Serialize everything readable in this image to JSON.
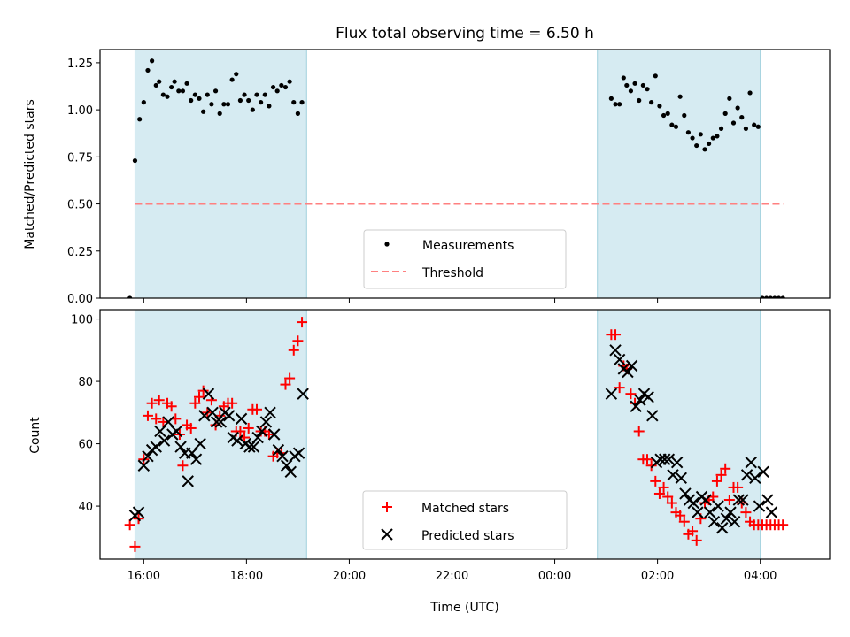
{
  "chart_data": [
    {
      "type": "scatter",
      "title": "Flux total observing time = 6.50 h",
      "xlabel": "",
      "ylabel": "Matched/Predicted stars",
      "xlim": [
        -0.85,
        13.35
      ],
      "ylim": [
        0,
        1.32
      ],
      "yticks": [
        0.0,
        0.25,
        0.5,
        0.75,
        1.0,
        1.25
      ],
      "ytick_labels": [
        "0.00",
        "0.25",
        "0.50",
        "0.75",
        "1.00",
        "1.25"
      ],
      "xticks": [
        0,
        2,
        4,
        6,
        8,
        10,
        12
      ],
      "shaded_intervals": [
        [
          -0.17,
          3.17
        ],
        [
          8.83,
          12.0
        ]
      ],
      "threshold": {
        "name": "Threshold",
        "value": 0.5,
        "x_range": [
          -0.17,
          12.45
        ],
        "color": "#ff8080"
      },
      "legend": {
        "position": "lower center",
        "entries": [
          "Measurements",
          "Threshold"
        ]
      },
      "series": [
        {
          "name": "Measurements",
          "color": "#000000",
          "marker": "dot",
          "x": [
            -0.27,
            -0.17,
            -0.08,
            0.0,
            0.08,
            0.16,
            0.24,
            0.3,
            0.38,
            0.46,
            0.54,
            0.6,
            0.68,
            0.76,
            0.84,
            0.92,
            1.0,
            1.08,
            1.16,
            1.24,
            1.32,
            1.4,
            1.48,
            1.56,
            1.64,
            1.72,
            1.8,
            1.88,
            1.96,
            2.04,
            2.12,
            2.2,
            2.28,
            2.36,
            2.44,
            2.52,
            2.6,
            2.68,
            2.76,
            2.84,
            2.92,
            3.0,
            3.08,
            9.1,
            9.18,
            9.26,
            9.34,
            9.4,
            9.48,
            9.56,
            9.64,
            9.72,
            9.8,
            9.88,
            9.96,
            10.04,
            10.12,
            10.2,
            10.28,
            10.36,
            10.44,
            10.52,
            10.6,
            10.68,
            10.76,
            10.84,
            10.92,
            11.0,
            11.08,
            11.16,
            11.24,
            11.32,
            11.4,
            11.48,
            11.56,
            11.64,
            11.72,
            11.8,
            11.88,
            11.96,
            12.04,
            12.12,
            12.2,
            12.28,
            12.36,
            12.44
          ],
          "y": [
            0.0,
            0.73,
            0.95,
            1.04,
            1.21,
            1.26,
            1.13,
            1.15,
            1.08,
            1.07,
            1.12,
            1.15,
            1.1,
            1.1,
            1.14,
            1.05,
            1.08,
            1.06,
            0.99,
            1.08,
            1.03,
            1.1,
            0.98,
            1.03,
            1.03,
            1.16,
            1.19,
            1.05,
            1.08,
            1.05,
            1.0,
            1.08,
            1.04,
            1.08,
            1.02,
            1.12,
            1.1,
            1.13,
            1.12,
            1.15,
            1.04,
            0.98,
            1.04,
            1.06,
            1.03,
            1.03,
            1.17,
            1.13,
            1.1,
            1.14,
            1.05,
            1.13,
            1.11,
            1.04,
            1.18,
            1.02,
            0.97,
            0.98,
            0.92,
            0.91,
            1.07,
            0.97,
            0.88,
            0.85,
            0.81,
            0.87,
            0.79,
            0.82,
            0.85,
            0.86,
            0.9,
            0.98,
            1.06,
            0.93,
            1.01,
            0.96,
            0.9,
            1.09,
            0.92,
            0.91,
            0.0,
            0.0,
            0.0,
            0.0,
            0.0,
            0.0
          ]
        }
      ]
    },
    {
      "type": "scatter",
      "title": "",
      "xlabel": "Time (UTC)",
      "ylabel": "Count",
      "xlim": [
        -0.85,
        13.35
      ],
      "ylim": [
        23,
        103
      ],
      "yticks": [
        40,
        60,
        80,
        100
      ],
      "ytick_labels": [
        "40",
        "60",
        "80",
        "100"
      ],
      "xticks": [
        0,
        2,
        4,
        6,
        8,
        10,
        12
      ],
      "xtick_labels": [
        "16:00",
        "18:00",
        "20:00",
        "22:00",
        "00:00",
        "02:00",
        "04:00"
      ],
      "shaded_intervals": [
        [
          -0.17,
          3.17
        ],
        [
          8.83,
          12.0
        ]
      ],
      "legend": {
        "position": "lower center",
        "entries": [
          "Matched stars",
          "Predicted stars"
        ]
      },
      "series": [
        {
          "name": "Matched stars",
          "color": "#ff0000",
          "marker": "plus",
          "x": [
            -0.27,
            -0.17,
            -0.1,
            0.0,
            0.08,
            0.16,
            0.24,
            0.3,
            0.38,
            0.46,
            0.54,
            0.62,
            0.7,
            0.76,
            0.84,
            0.92,
            1.0,
            1.08,
            1.16,
            1.24,
            1.32,
            1.4,
            1.48,
            1.56,
            1.64,
            1.72,
            1.8,
            1.88,
            1.96,
            2.04,
            2.12,
            2.2,
            2.28,
            2.36,
            2.44,
            2.52,
            2.6,
            2.68,
            2.76,
            2.84,
            2.92,
            3.0,
            3.08,
            9.1,
            9.18,
            9.26,
            9.34,
            9.4,
            9.48,
            9.56,
            9.64,
            9.72,
            9.8,
            9.88,
            9.96,
            10.04,
            10.12,
            10.2,
            10.28,
            10.36,
            10.44,
            10.52,
            10.6,
            10.68,
            10.76,
            10.84,
            10.92,
            11.0,
            11.08,
            11.16,
            11.24,
            11.32,
            11.4,
            11.48,
            11.56,
            11.64,
            11.72,
            11.8,
            11.88,
            11.96,
            12.04,
            12.12,
            12.2,
            12.28,
            12.36,
            12.44
          ],
          "y": [
            34,
            27,
            36,
            55,
            69,
            73,
            68,
            74,
            67,
            73,
            72,
            68,
            63,
            53,
            66,
            65,
            73,
            75,
            77,
            70,
            74,
            66,
            69,
            72,
            73,
            73,
            64,
            64,
            62,
            65,
            71,
            71,
            64,
            64,
            63,
            56,
            57,
            57,
            79,
            81,
            90,
            93,
            99,
            95,
            95,
            78,
            85,
            84,
            76,
            73,
            64,
            55,
            55,
            53,
            48,
            44,
            46,
            43,
            41,
            38,
            37,
            35,
            31,
            32,
            29,
            36,
            41,
            42,
            43,
            48,
            50,
            52,
            42,
            46,
            46,
            41,
            38,
            35,
            34,
            34,
            34,
            34,
            34,
            34,
            34,
            34
          ],
          "x_note": "x values in hours since 16:00 UTC"
        },
        {
          "name": "Predicted stars",
          "color": "#000000",
          "marker": "cross",
          "x": [
            -0.17,
            -0.1,
            0.0,
            0.08,
            0.16,
            0.24,
            0.32,
            0.4,
            0.48,
            0.56,
            0.64,
            0.72,
            0.8,
            0.86,
            0.94,
            1.02,
            1.1,
            1.18,
            1.26,
            1.34,
            1.42,
            1.5,
            1.58,
            1.66,
            1.74,
            1.82,
            1.9,
            1.98,
            2.06,
            2.14,
            2.22,
            2.3,
            2.38,
            2.46,
            2.54,
            2.62,
            2.7,
            2.78,
            2.86,
            2.94,
            3.02,
            3.1,
            9.1,
            9.18,
            9.26,
            9.34,
            9.42,
            9.5,
            9.58,
            9.66,
            9.74,
            9.82,
            9.9,
            9.98,
            10.06,
            10.14,
            10.22,
            10.3,
            10.38,
            10.46,
            10.54,
            10.62,
            10.7,
            10.78,
            10.86,
            10.94,
            11.02,
            11.1,
            11.18,
            11.26,
            11.34,
            11.42,
            11.5,
            11.58,
            11.66,
            11.74,
            11.82,
            11.9,
            11.98,
            12.06,
            12.14,
            12.22
          ],
          "y": [
            37,
            38,
            53,
            56,
            58,
            59,
            64,
            61,
            67,
            63,
            64,
            59,
            57,
            48,
            57,
            55,
            60,
            69,
            76,
            70,
            67,
            67,
            70,
            69,
            62,
            61,
            68,
            60,
            59,
            59,
            62,
            64,
            67,
            70,
            63,
            58,
            56,
            53,
            51,
            56,
            57,
            76,
            76,
            90,
            87,
            84,
            83,
            85,
            72,
            74,
            76,
            75,
            69,
            54,
            55,
            55,
            55,
            50,
            54,
            49,
            44,
            42,
            41,
            38,
            43,
            42,
            38,
            35,
            40,
            33,
            36,
            38,
            35,
            42,
            42,
            50,
            54,
            49,
            40,
            51,
            42,
            38
          ]
        }
      ]
    }
  ]
}
